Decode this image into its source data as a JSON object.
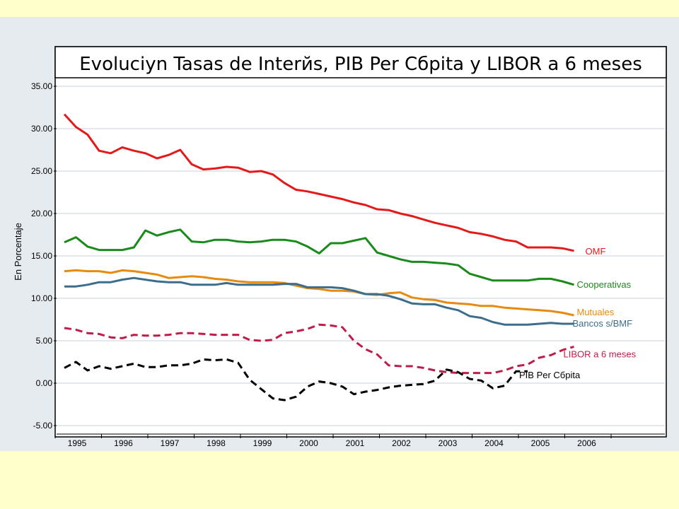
{
  "colors": {
    "slide_background": "#ffffcc",
    "panel_background": "#e6ebf0",
    "plot_background": "#ffffff",
    "gridline": "#c8d0dc"
  },
  "chart_data": {
    "type": "line",
    "title": "Evoluciyn Tasas de Interйs, PIB Per Cбpita y LIBOR a 6 meses",
    "xlabel": "",
    "ylabel": "En Porcentaje",
    "xlim": [
      1995.0,
      2007.75
    ],
    "ylim": [
      -6.0,
      36.0
    ],
    "y_ticks": [
      -5,
      0,
      5,
      10,
      15,
      20,
      25,
      30,
      35
    ],
    "y_tick_labels": [
      "-5.00",
      "0.00",
      "5.00",
      "10.00",
      "15.00",
      "20.00",
      "25.00",
      "30.00",
      "35.00"
    ],
    "x_ticks": [
      1995,
      1996,
      1997,
      1998,
      1999,
      2000,
      2001,
      2002,
      2003,
      2004,
      2005,
      2006
    ],
    "x_tick_labels": [
      "1995",
      "1996",
      "1997",
      "1998",
      "1999",
      "2000",
      "2001",
      "2002",
      "2003",
      "2004",
      "2005",
      "2006"
    ],
    "grid": true,
    "legend": "labels at line ends",
    "series": [
      {
        "name": "OMF",
        "color": "#e41a1a",
        "dash": "solid",
        "x": [
          1995.0,
          1995.25,
          1995.5,
          1995.75,
          1996.0,
          1996.25,
          1996.5,
          1996.75,
          1997.0,
          1997.25,
          1997.5,
          1997.75,
          1998.0,
          1998.25,
          1998.5,
          1998.75,
          1999.0,
          1999.25,
          1999.5,
          1999.75,
          2000.0,
          2000.25,
          2000.5,
          2000.75,
          2001.0,
          2001.25,
          2001.5,
          2001.75,
          2002.0,
          2002.25,
          2002.5,
          2002.75,
          2003.0,
          2003.25,
          2003.5,
          2003.75,
          2004.0,
          2004.25,
          2004.5,
          2004.75,
          2005.0,
          2005.25,
          2005.5,
          2005.75,
          2006.0
        ],
        "y": [
          31.7,
          30.2,
          29.3,
          27.4,
          27.1,
          27.8,
          27.4,
          27.1,
          26.5,
          26.9,
          27.5,
          25.8,
          25.2,
          25.3,
          25.5,
          25.4,
          24.9,
          25.0,
          24.6,
          23.6,
          22.8,
          22.6,
          22.3,
          22.0,
          21.7,
          21.3,
          21.0,
          20.5,
          20.4,
          20.0,
          19.7,
          19.3,
          18.9,
          18.6,
          18.3,
          17.8,
          17.6,
          17.3,
          16.9,
          16.7,
          16.0,
          16.0,
          16.0,
          15.9,
          15.6
        ]
      },
      {
        "name": "Cooperativas",
        "color": "#1a8a1a",
        "dash": "solid",
        "x": [
          1995.0,
          1995.25,
          1995.5,
          1995.75,
          1996.0,
          1996.25,
          1996.5,
          1996.75,
          1997.0,
          1997.25,
          1997.5,
          1997.75,
          1998.0,
          1998.25,
          1998.5,
          1998.75,
          1999.0,
          1999.25,
          1999.5,
          1999.75,
          2000.0,
          2000.25,
          2000.5,
          2000.75,
          2001.0,
          2001.25,
          2001.5,
          2001.75,
          2002.0,
          2002.25,
          2002.5,
          2002.75,
          2003.0,
          2003.25,
          2003.5,
          2003.75,
          2004.0,
          2004.25,
          2004.5,
          2004.75,
          2005.0,
          2005.25,
          2005.5,
          2005.75,
          2006.0
        ],
        "y": [
          16.6,
          17.2,
          16.1,
          15.7,
          15.7,
          15.7,
          16.0,
          18.0,
          17.4,
          17.8,
          18.1,
          16.7,
          16.6,
          16.9,
          16.9,
          16.7,
          16.6,
          16.7,
          16.9,
          16.9,
          16.7,
          16.1,
          15.3,
          16.5,
          16.5,
          16.8,
          17.1,
          15.4,
          15.0,
          14.6,
          14.3,
          14.3,
          14.2,
          14.1,
          13.9,
          12.9,
          12.5,
          12.1,
          12.1,
          12.1,
          12.1,
          12.3,
          12.3,
          12.0,
          11.6
        ]
      },
      {
        "name": "Mutuales",
        "color": "#e68a10",
        "dash": "solid",
        "x": [
          1995.0,
          1995.25,
          1995.5,
          1995.75,
          1996.0,
          1996.25,
          1996.5,
          1996.75,
          1997.0,
          1997.25,
          1997.5,
          1997.75,
          1998.0,
          1998.25,
          1998.5,
          1998.75,
          1999.0,
          1999.25,
          1999.5,
          1999.75,
          2000.0,
          2000.25,
          2000.5,
          2000.75,
          2001.0,
          2001.25,
          2001.5,
          2001.75,
          2002.0,
          2002.25,
          2002.5,
          2002.75,
          2003.0,
          2003.25,
          2003.5,
          2003.75,
          2004.0,
          2004.25,
          2004.5,
          2004.75,
          2005.0,
          2005.25,
          2005.5,
          2005.75,
          2006.0
        ],
        "y": [
          13.2,
          13.3,
          13.2,
          13.2,
          13.0,
          13.3,
          13.2,
          13.0,
          12.8,
          12.4,
          12.5,
          12.6,
          12.5,
          12.3,
          12.2,
          12.0,
          11.9,
          11.9,
          11.9,
          11.8,
          11.5,
          11.2,
          11.1,
          10.9,
          10.9,
          10.8,
          10.5,
          10.4,
          10.6,
          10.7,
          10.1,
          9.9,
          9.8,
          9.5,
          9.4,
          9.3,
          9.1,
          9.1,
          8.9,
          8.8,
          8.7,
          8.6,
          8.5,
          8.3,
          8.0
        ]
      },
      {
        "name": "Bancos s/BMF",
        "color": "#3c6e8c",
        "dash": "solid",
        "x": [
          1995.0,
          1995.25,
          1995.5,
          1995.75,
          1996.0,
          1996.25,
          1996.5,
          1996.75,
          1997.0,
          1997.25,
          1997.5,
          1997.75,
          1998.0,
          1998.25,
          1998.5,
          1998.75,
          1999.0,
          1999.25,
          1999.5,
          1999.75,
          2000.0,
          2000.25,
          2000.5,
          2000.75,
          2001.0,
          2001.25,
          2001.5,
          2001.75,
          2002.0,
          2002.25,
          2002.5,
          2002.75,
          2003.0,
          2003.25,
          2003.5,
          2003.75,
          2004.0,
          2004.25,
          2004.5,
          2004.75,
          2005.0,
          2005.25,
          2005.5,
          2005.75,
          2006.0
        ],
        "y": [
          11.4,
          11.4,
          11.6,
          11.9,
          11.9,
          12.2,
          12.4,
          12.2,
          12.0,
          11.9,
          11.9,
          11.6,
          11.6,
          11.6,
          11.8,
          11.6,
          11.6,
          11.6,
          11.6,
          11.7,
          11.7,
          11.3,
          11.3,
          11.3,
          11.2,
          10.9,
          10.5,
          10.5,
          10.3,
          9.9,
          9.4,
          9.3,
          9.3,
          8.9,
          8.6,
          7.9,
          7.7,
          7.2,
          6.9,
          6.9,
          6.9,
          7.0,
          7.1,
          7.0,
          7.0
        ]
      },
      {
        "name": "LIBOR a 6 meses",
        "color": "#c01c4a",
        "dash": "dashed",
        "x": [
          1995.0,
          1995.25,
          1995.5,
          1995.75,
          1996.0,
          1996.25,
          1996.5,
          1996.75,
          1997.0,
          1997.25,
          1997.5,
          1997.75,
          1998.0,
          1998.25,
          1998.5,
          1998.75,
          1999.0,
          1999.25,
          1999.5,
          1999.75,
          2000.0,
          2000.25,
          2000.5,
          2000.75,
          2001.0,
          2001.25,
          2001.5,
          2001.75,
          2002.0,
          2002.25,
          2002.5,
          2002.75,
          2003.0,
          2003.25,
          2003.5,
          2003.75,
          2004.0,
          2004.25,
          2004.5,
          2004.75,
          2005.0,
          2005.25,
          2005.5,
          2005.75,
          2006.0
        ],
        "y": [
          6.5,
          6.3,
          5.9,
          5.8,
          5.4,
          5.3,
          5.7,
          5.6,
          5.6,
          5.7,
          5.9,
          5.9,
          5.8,
          5.7,
          5.7,
          5.7,
          5.1,
          5.0,
          5.1,
          5.9,
          6.1,
          6.4,
          6.9,
          6.8,
          6.6,
          5.0,
          4.0,
          3.4,
          2.1,
          2.0,
          2.0,
          1.8,
          1.5,
          1.3,
          1.2,
          1.2,
          1.2,
          1.2,
          1.5,
          2.0,
          2.2,
          3.0,
          3.3,
          3.9,
          4.3
        ]
      },
      {
        "name": "PIB Per Cбpita",
        "color": "#000000",
        "dash": "dashed",
        "x": [
          1995.0,
          1995.25,
          1995.5,
          1995.75,
          1996.0,
          1996.25,
          1996.5,
          1996.75,
          1997.0,
          1997.25,
          1997.5,
          1997.75,
          1998.0,
          1998.25,
          1998.5,
          1998.75,
          1999.0,
          1999.25,
          1999.5,
          1999.75,
          2000.0,
          2000.25,
          2000.5,
          2000.75,
          2001.0,
          2001.25,
          2001.5,
          2001.75,
          2002.0,
          2002.25,
          2002.5,
          2002.75,
          2003.0,
          2003.25,
          2003.5,
          2003.75,
          2004.0,
          2004.25,
          2004.5,
          2004.75,
          2005.0
        ],
        "y": [
          1.8,
          2.5,
          1.5,
          2.0,
          1.7,
          2.0,
          2.3,
          1.9,
          1.9,
          2.1,
          2.1,
          2.3,
          2.8,
          2.7,
          2.8,
          2.4,
          0.4,
          -0.7,
          -1.8,
          -2.0,
          -1.6,
          -0.4,
          0.2,
          0.0,
          -0.4,
          -1.3,
          -1.0,
          -0.8,
          -0.5,
          -0.3,
          -0.2,
          -0.1,
          0.3,
          1.6,
          1.3,
          0.5,
          0.3,
          -0.6,
          -0.3,
          1.4,
          1.4
        ]
      }
    ]
  }
}
